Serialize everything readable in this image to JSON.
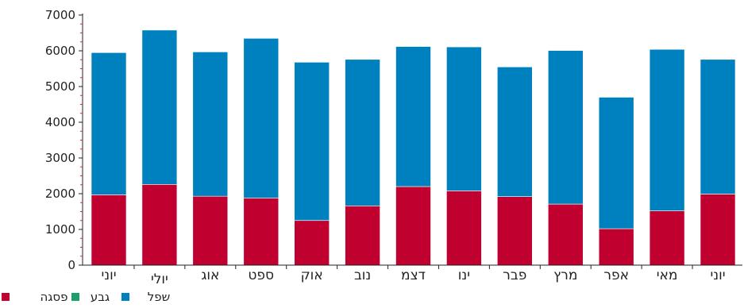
{
  "chart_data": {
    "type": "bar",
    "stacked": true,
    "categories": [
      "יוני",
      "יולי",
      "אוג",
      "ספט",
      "אוק",
      "נוב",
      "דצמ",
      "ינו",
      "פבר",
      "מרץ",
      "אפר",
      "מאי",
      "יוני"
    ],
    "series": [
      {
        "name": "פסגה",
        "color": "#c0002f",
        "values": [
          1970,
          2260,
          1930,
          1880,
          1250,
          1660,
          2200,
          2080,
          1920,
          1710,
          1020,
          1520,
          1990
        ]
      },
      {
        "name": "גבע",
        "color": "#1e9e6a",
        "values": [
          0,
          0,
          0,
          0,
          0,
          0,
          0,
          0,
          0,
          0,
          0,
          0,
          0
        ]
      },
      {
        "name": "שפל",
        "color": "#0081bf",
        "values": [
          3980,
          4320,
          4040,
          4470,
          4430,
          4100,
          3920,
          4030,
          3630,
          4300,
          3680,
          4520,
          3770
        ]
      }
    ],
    "yticks": [
      0,
      1000,
      2000,
      3000,
      4000,
      5000,
      6000,
      7000
    ],
    "ylim": [
      0,
      7000
    ],
    "legend_position": "bottom-left",
    "title": "",
    "xlabel": "",
    "ylabel": ""
  }
}
